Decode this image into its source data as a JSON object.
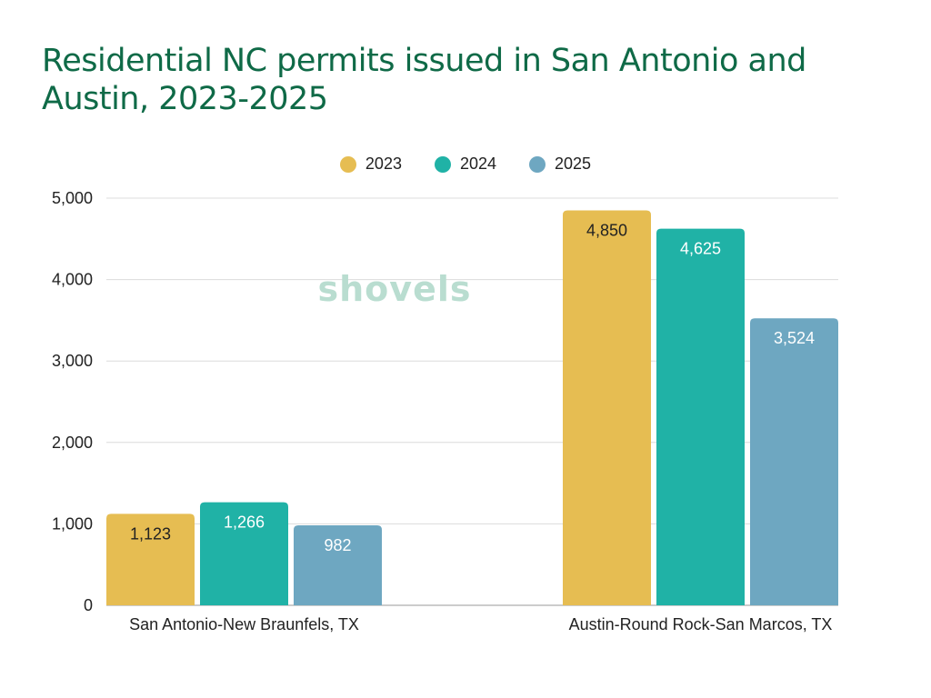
{
  "chart_data": {
    "type": "bar",
    "title": "Residential NC permits issued in San Antonio and Austin, 2023-2025",
    "categories": [
      "San Antonio-New Braunfels, TX",
      "Austin-Round Rock-San Marcos, TX"
    ],
    "series": [
      {
        "name": "2023",
        "values": [
          1123,
          4850
        ],
        "labels": [
          "1,123",
          "4,850"
        ],
        "color": "#e6bd52",
        "label_color": "#222222"
      },
      {
        "name": "2024",
        "values": [
          1266,
          4625
        ],
        "labels": [
          "1,266",
          "4,625"
        ],
        "color": "#20b2a6",
        "label_color": "#ffffff"
      },
      {
        "name": "2025",
        "values": [
          982,
          3524
        ],
        "labels": [
          "982",
          "3,524"
        ],
        "color": "#6ea7c1",
        "label_color": "#ffffff"
      }
    ],
    "ylim": [
      0,
      5000
    ],
    "yticks": [
      0,
      1000,
      2000,
      3000,
      4000,
      5000
    ],
    "ytick_labels": [
      "0",
      "1,000",
      "2,000",
      "3,000",
      "4,000",
      "5,000"
    ],
    "grid": true,
    "legend_position": "top-center"
  },
  "watermark": "shovels"
}
